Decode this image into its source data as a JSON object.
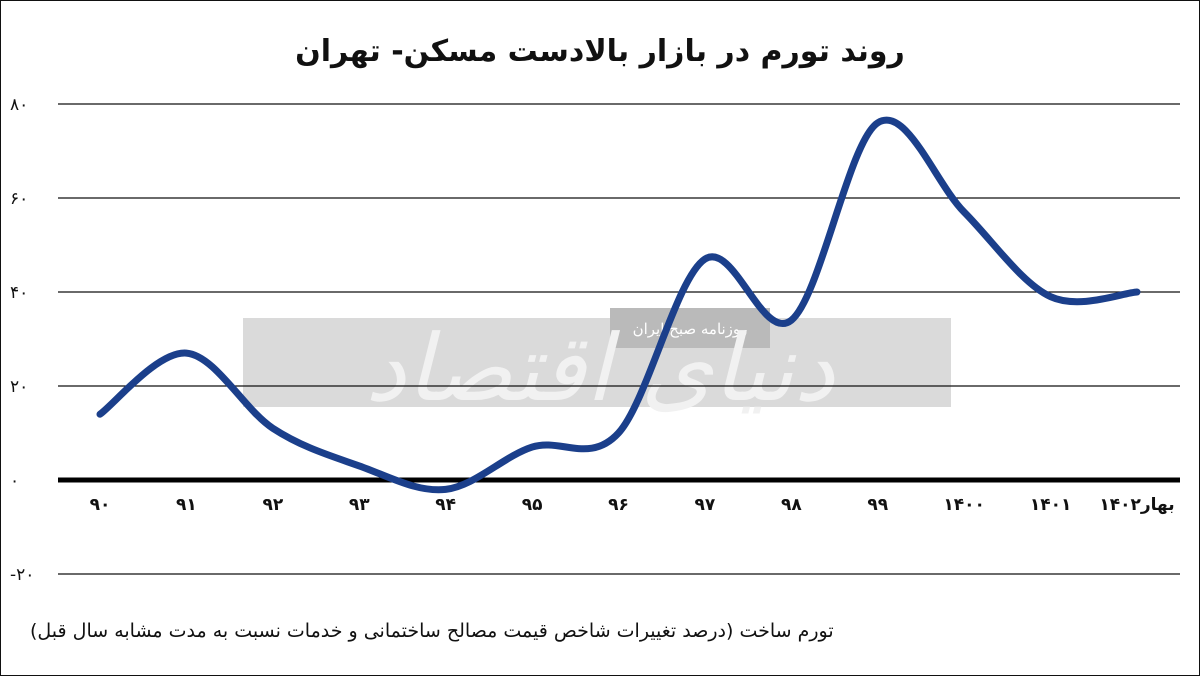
{
  "title": "روند تورم در بازار بالادست مسکن- تهران",
  "caption": "تورم ساخت (درصد تغییرات شاخص قیمت مصالح ساختمانی و خدمات نسبت به مدت مشابه سال قبل)",
  "watermark": {
    "brand": "دنیای اقتصاد",
    "tagline": "روزنامه صبح ایران"
  },
  "chart_data": {
    "type": "line",
    "title": "روند تورم در بازار بالادست مسکن- تهران",
    "xlabel": "",
    "ylabel": "",
    "categories": [
      "۹۰",
      "۹۱",
      "۹۲",
      "۹۳",
      "۹۴",
      "۹۵",
      "۹۶",
      "۹۷",
      "۹۸",
      "۹۹",
      "۱۴۰۰",
      "۱۴۰۱",
      "بهار۱۴۰۲"
    ],
    "series": [
      {
        "values": [
          14,
          27,
          11,
          3,
          -2,
          7,
          10,
          47,
          34,
          76,
          57,
          39,
          40
        ]
      }
    ],
    "ylim": [
      -20,
      80
    ],
    "yticks": [
      {
        "value": 80,
        "label": "۸۰"
      },
      {
        "value": 60,
        "label": "۶۰"
      },
      {
        "value": 40,
        "label": "۴۰"
      },
      {
        "value": 20,
        "label": "۲۰"
      },
      {
        "value": 0,
        "label": "۰"
      },
      {
        "value": -20,
        "label": "-۲۰"
      }
    ],
    "grid": true,
    "colors": {
      "line": "#1b3f8b",
      "grid": "#111111",
      "zero_axis": "#000000"
    }
  }
}
